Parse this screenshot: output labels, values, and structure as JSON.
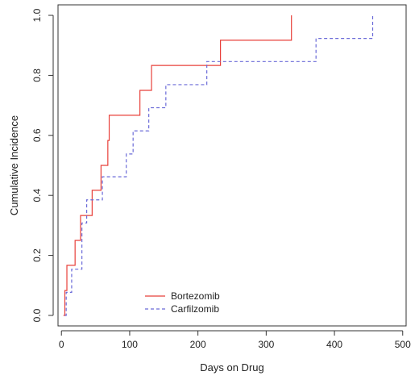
{
  "chart_data": {
    "type": "line",
    "step": true,
    "xlabel": "Days on Drug",
    "ylabel": "Cumulative Incidence",
    "xlim": [
      -5,
      505
    ],
    "ylim": [
      -0.035,
      1.035
    ],
    "xticks": [
      0,
      100,
      200,
      300,
      400,
      500
    ],
    "xtick_labels": [
      "0",
      "100",
      "200",
      "300",
      "400",
      "500"
    ],
    "yticks": [
      0.0,
      0.2,
      0.4,
      0.6,
      0.8,
      1.0
    ],
    "ytick_labels": [
      "0.0",
      "0.2",
      "0.4",
      "0.6",
      "0.8",
      "1.0"
    ],
    "grid": false,
    "legend_position": "bottom-left",
    "series": [
      {
        "name": "Bortezomib",
        "color": "#e8403a",
        "dash": "solid",
        "points": [
          [
            3,
            0.0
          ],
          [
            5,
            0.083
          ],
          [
            8,
            0.167
          ],
          [
            20,
            0.25
          ],
          [
            28,
            0.333
          ],
          [
            45,
            0.417
          ],
          [
            58,
            0.5
          ],
          [
            68,
            0.583
          ],
          [
            70,
            0.667
          ],
          [
            115,
            0.75
          ],
          [
            132,
            0.833
          ],
          [
            233,
            0.917
          ],
          [
            337,
            1.0
          ]
        ]
      },
      {
        "name": "Carfilzomib",
        "color": "#6a6ad8",
        "dash": "dashed",
        "points": [
          [
            5,
            0.0
          ],
          [
            7,
            0.077
          ],
          [
            15,
            0.154
          ],
          [
            30,
            0.308
          ],
          [
            37,
            0.385
          ],
          [
            60,
            0.462
          ],
          [
            95,
            0.538
          ],
          [
            105,
            0.615
          ],
          [
            128,
            0.692
          ],
          [
            153,
            0.769
          ],
          [
            213,
            0.846
          ],
          [
            373,
            0.923
          ],
          [
            456,
            1.0
          ]
        ]
      }
    ]
  }
}
